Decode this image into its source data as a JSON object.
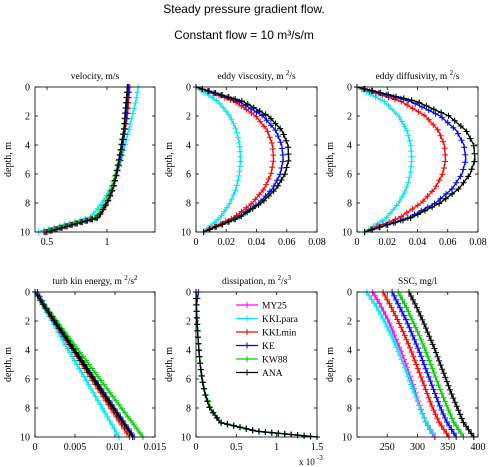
{
  "title_line1": "Steady pressure gradient flow.",
  "title_line2": "Constant flow = 10 m³/s/m",
  "colors": {
    "MY25": "#ff00ff",
    "KKLpara": "#00e5ee",
    "KKLmin": "#ff0000",
    "KE": "#0000ff",
    "KW88": "#00cc00",
    "ANA": "#000000"
  },
  "chart_data": [
    {
      "type": "line",
      "title": "velocity, m/s",
      "xlabel": "",
      "ylabel": "depth, m",
      "xlim": [
        0.4,
        1.4
      ],
      "ylim": [
        0,
        10
      ],
      "y_reversed": true,
      "xticks": [
        {
          "v": 0.5,
          "label": "0.5"
        },
        {
          "v": 1,
          "label": "1"
        }
      ],
      "yticks": [
        0,
        2,
        4,
        6,
        8,
        10
      ],
      "series": [
        {
          "name": "MY25",
          "x": [
            1.18,
            1.17,
            1.16,
            1.15,
            1.13,
            1.11,
            1.08,
            1.05,
            1.0,
            0.92,
            0.48
          ],
          "y": [
            0,
            1,
            2,
            3,
            4,
            5,
            6,
            7,
            8,
            9,
            10
          ]
        },
        {
          "name": "KKLpara",
          "x": [
            1.26,
            1.24,
            1.21,
            1.18,
            1.15,
            1.12,
            1.08,
            1.03,
            0.96,
            0.86,
            0.43
          ],
          "y": [
            0,
            1,
            2,
            3,
            4,
            5,
            6,
            7,
            8,
            9,
            10
          ]
        },
        {
          "name": "KKLmin",
          "x": [
            1.19,
            1.18,
            1.17,
            1.15,
            1.13,
            1.11,
            1.08,
            1.05,
            1.0,
            0.92,
            0.48
          ],
          "y": [
            0,
            1,
            2,
            3,
            4,
            5,
            6,
            7,
            8,
            9,
            10
          ]
        },
        {
          "name": "KE",
          "x": [
            1.18,
            1.17,
            1.16,
            1.15,
            1.13,
            1.11,
            1.08,
            1.05,
            1.0,
            0.92,
            0.49
          ],
          "y": [
            0,
            1,
            2,
            3,
            4,
            5,
            6,
            7,
            8,
            9,
            10
          ]
        },
        {
          "name": "KW88",
          "x": [
            1.17,
            1.16,
            1.15,
            1.14,
            1.12,
            1.1,
            1.07,
            1.04,
            0.99,
            0.91,
            0.47
          ],
          "y": [
            0,
            1,
            2,
            3,
            4,
            5,
            6,
            7,
            8,
            9,
            10
          ]
        },
        {
          "name": "ANA",
          "x": [
            1.17,
            1.16,
            1.15,
            1.14,
            1.12,
            1.1,
            1.08,
            1.05,
            1.0,
            0.93,
            0.5
          ],
          "y": [
            0,
            1,
            2,
            3,
            4,
            5,
            6,
            7,
            8,
            9,
            10
          ]
        }
      ]
    },
    {
      "type": "line",
      "title": "eddy viscosity, m 2/s",
      "xlabel": "",
      "ylabel": "depth, m",
      "xlim": [
        0,
        0.08
      ],
      "ylim": [
        0,
        10
      ],
      "y_reversed": true,
      "xticks": [
        {
          "v": 0,
          "label": "0"
        },
        {
          "v": 0.02,
          "label": "0.02"
        },
        {
          "v": 0.04,
          "label": "0.04"
        },
        {
          "v": 0.06,
          "label": "0.06"
        },
        {
          "v": 0.08,
          "label": "0.08"
        }
      ],
      "yticks": [
        0,
        2,
        4,
        6,
        8,
        10
      ],
      "series": [
        {
          "name": "KKLpara",
          "x": [
            0.0,
            0.0146,
            0.0224,
            0.0268,
            0.0289,
            0.0294,
            0.0287,
            0.0266,
            0.0225,
            0.016,
            0.005
          ],
          "y": [
            0,
            1,
            2,
            3,
            4,
            5,
            6,
            7,
            8,
            9,
            10
          ]
        },
        {
          "name": "KKLmin",
          "x": [
            0.0,
            0.0255,
            0.0395,
            0.0471,
            0.0506,
            0.0513,
            0.0496,
            0.0452,
            0.0372,
            0.025,
            0.005
          ],
          "y": [
            0,
            1,
            2,
            3,
            4,
            5,
            6,
            7,
            8,
            9,
            10
          ]
        },
        {
          "name": "KE",
          "x": [
            0.0,
            0.0285,
            0.0442,
            0.0527,
            0.0567,
            0.0577,
            0.0557,
            0.0507,
            0.0417,
            0.0279,
            0.005
          ],
          "y": [
            0,
            1,
            2,
            3,
            4,
            5,
            6,
            7,
            8,
            9,
            10
          ]
        },
        {
          "name": "KW88",
          "x": [
            0.0,
            0.0312,
            0.0479,
            0.0568,
            0.0608,
            0.0613,
            0.0588,
            0.0531,
            0.0433,
            0.0285,
            0.005
          ],
          "y": [
            0,
            1,
            2,
            3,
            4,
            5,
            6,
            7,
            8,
            9,
            10
          ]
        },
        {
          "name": "ANA",
          "x": [
            0.0,
            0.0312,
            0.0479,
            0.0568,
            0.0608,
            0.0613,
            0.0588,
            0.0531,
            0.0433,
            0.0285,
            0.005
          ],
          "y": [
            0,
            1,
            2,
            3,
            4,
            5,
            6,
            7,
            8,
            9,
            10
          ]
        }
      ]
    },
    {
      "type": "line",
      "title": "eddy diffusivity, m 2/s",
      "xlabel": "",
      "ylabel": "depth, m",
      "xlim": [
        0,
        0.08
      ],
      "ylim": [
        0,
        10
      ],
      "y_reversed": true,
      "xticks": [
        {
          "v": 0,
          "label": "0"
        },
        {
          "v": 0.02,
          "label": "0.02"
        },
        {
          "v": 0.04,
          "label": "0.04"
        },
        {
          "v": 0.06,
          "label": "0.06"
        },
        {
          "v": 0.08,
          "label": "0.08"
        }
      ],
      "yticks": [
        0,
        2,
        4,
        6,
        8,
        10
      ],
      "series": [
        {
          "name": "KKLpara",
          "x": [
            0.0,
            0.018,
            0.0276,
            0.033,
            0.0356,
            0.0362,
            0.0353,
            0.0327,
            0.0276,
            0.0196,
            0.005
          ],
          "y": [
            0,
            1,
            2,
            3,
            4,
            5,
            6,
            7,
            8,
            9,
            10
          ]
        },
        {
          "name": "KKLmin",
          "x": [
            0.0,
            0.0292,
            0.0452,
            0.0538,
            0.0578,
            0.0586,
            0.0566,
            0.0515,
            0.0424,
            0.0283,
            0.005
          ],
          "y": [
            0,
            1,
            2,
            3,
            4,
            5,
            6,
            7,
            8,
            9,
            10
          ]
        },
        {
          "name": "KE",
          "x": [
            0.0,
            0.0356,
            0.0551,
            0.0657,
            0.0707,
            0.072,
            0.0694,
            0.0631,
            0.0519,
            0.0344,
            0.005
          ],
          "y": [
            0,
            1,
            2,
            3,
            4,
            5,
            6,
            7,
            8,
            9,
            10
          ]
        },
        {
          "name": "KW88",
          "x": [
            0.0,
            0.0395,
            0.0608,
            0.0721,
            0.0772,
            0.078,
            0.0748,
            0.0675,
            0.055,
            0.0362,
            0.005
          ],
          "y": [
            0,
            1,
            2,
            3,
            4,
            5,
            6,
            7,
            8,
            9,
            10
          ]
        },
        {
          "name": "ANA",
          "x": [
            0.0,
            0.0395,
            0.0608,
            0.0721,
            0.0772,
            0.078,
            0.0748,
            0.0675,
            0.055,
            0.0362,
            0.005
          ],
          "y": [
            0,
            1,
            2,
            3,
            4,
            5,
            6,
            7,
            8,
            9,
            10
          ]
        }
      ]
    },
    {
      "type": "line",
      "title": "turb kin energy, m 2/s2",
      "xlabel": "",
      "ylabel": "depth, m",
      "xlim": [
        0,
        0.015
      ],
      "ylim": [
        0,
        10
      ],
      "y_reversed": true,
      "xticks": [
        {
          "v": 0,
          "label": "0"
        },
        {
          "v": 0.005,
          "label": "0.005"
        },
        {
          "v": 0.01,
          "label": "0.01"
        },
        {
          "v": 0.015,
          "label": "0.015"
        }
      ],
      "yticks": [
        0,
        2,
        4,
        6,
        8,
        10
      ],
      "series": [
        {
          "name": "KKLpara",
          "x": [
            0.0,
            0.00105,
            0.0021,
            0.00315,
            0.0042,
            0.00525,
            0.0063,
            0.00735,
            0.0084,
            0.00945,
            0.0105
          ],
          "y": [
            0,
            1,
            2,
            3,
            4,
            5,
            6,
            7,
            8,
            9,
            10
          ]
        },
        {
          "name": "KKLmin",
          "x": [
            0.0,
            0.00118,
            0.00236,
            0.00354,
            0.00472,
            0.0059,
            0.00708,
            0.00826,
            0.00944,
            0.01062,
            0.0118
          ],
          "y": [
            0,
            1,
            2,
            3,
            4,
            5,
            6,
            7,
            8,
            9,
            10
          ]
        },
        {
          "name": "KE",
          "x": [
            0.0003,
            0.00126,
            0.00248,
            0.00372,
            0.00495,
            0.00618,
            0.00742,
            0.00866,
            0.0099,
            0.01114,
            0.0124
          ],
          "y": [
            0,
            1,
            2,
            3,
            4,
            5,
            6,
            7,
            8,
            9,
            10
          ]
        },
        {
          "name": "KW88",
          "x": [
            0.0,
            0.00135,
            0.0027,
            0.00405,
            0.0054,
            0.00675,
            0.0081,
            0.00945,
            0.0108,
            0.01215,
            0.0135
          ],
          "y": [
            0,
            1,
            2,
            3,
            4,
            5,
            6,
            7,
            8,
            9,
            10
          ]
        },
        {
          "name": "ANA",
          "x": [
            0.0,
            0.00122,
            0.00244,
            0.00366,
            0.00488,
            0.0061,
            0.00732,
            0.00854,
            0.00976,
            0.01098,
            0.0122
          ],
          "y": [
            0,
            1,
            2,
            3,
            4,
            5,
            6,
            7,
            8,
            9,
            10
          ]
        }
      ]
    },
    {
      "type": "line",
      "title": "dissipation, m 2/s3",
      "xlabel": "",
      "ylabel": "depth, m",
      "x_multiplier": "x 10 -3",
      "xlim": [
        0,
        1.5
      ],
      "ylim": [
        0,
        10
      ],
      "y_reversed": true,
      "xticks": [
        {
          "v": 0,
          "label": "0"
        },
        {
          "v": 0.5,
          "label": "0.5"
        },
        {
          "v": 1,
          "label": "1"
        },
        {
          "v": 1.5,
          "label": "1.5"
        }
      ],
      "yticks": [
        0,
        2,
        4,
        6,
        8,
        10
      ],
      "series": [
        {
          "name": "KKLpara",
          "x": [
            0.0,
            0.005,
            0.013,
            0.023,
            0.036,
            0.052,
            0.075,
            0.11,
            0.17,
            0.3,
            0.75,
            1.5
          ],
          "y": [
            0,
            1,
            2,
            3,
            4,
            5,
            6,
            7,
            8,
            9,
            9.6,
            10
          ]
        },
        {
          "name": "KE",
          "x": [
            0.03,
            0.005,
            0.013,
            0.023,
            0.036,
            0.052,
            0.075,
            0.11,
            0.17,
            0.3,
            0.75,
            1.5
          ],
          "y": [
            0,
            1,
            2,
            3,
            4,
            5,
            6,
            7,
            8,
            9,
            9.6,
            10
          ]
        },
        {
          "name": "KW88",
          "x": [
            0.0,
            0.006,
            0.014,
            0.024,
            0.037,
            0.054,
            0.078,
            0.115,
            0.18,
            0.31,
            0.76,
            1.5
          ],
          "y": [
            0,
            1,
            2,
            3,
            4,
            5,
            6,
            7,
            8,
            9,
            9.6,
            10
          ]
        },
        {
          "name": "ANA",
          "x": [
            0.0,
            0.005,
            0.013,
            0.023,
            0.036,
            0.052,
            0.075,
            0.11,
            0.17,
            0.3,
            0.75,
            1.5
          ],
          "y": [
            0,
            1,
            2,
            3,
            4,
            5,
            6,
            7,
            8,
            9,
            9.6,
            10
          ]
        }
      ]
    },
    {
      "type": "line",
      "title": "SSC, mg/l",
      "xlabel": "",
      "ylabel": "depth, m",
      "xlim": [
        200,
        400
      ],
      "ylim": [
        0,
        10
      ],
      "y_reversed": true,
      "xticks": [
        {
          "v": 250,
          "label": "250"
        },
        {
          "v": 300,
          "label": "300"
        },
        {
          "v": 350,
          "label": "350"
        },
        {
          "v": 400,
          "label": "400"
        }
      ],
      "yticks": [
        0,
        2,
        4,
        6,
        8,
        10
      ],
      "series": [
        {
          "name": "MY25",
          "x": [
            226,
            240,
            252,
            262,
            272,
            281,
            289,
            297,
            305,
            314,
            328
          ],
          "y": [
            0,
            1,
            2,
            3,
            4,
            5,
            6,
            7,
            8,
            9,
            10
          ]
        },
        {
          "name": "KKLpara",
          "x": [
            216,
            232,
            245,
            257,
            267,
            277,
            286,
            295,
            304,
            314,
            330
          ],
          "y": [
            0,
            1,
            2,
            3,
            4,
            5,
            6,
            7,
            8,
            9,
            10
          ]
        },
        {
          "name": "KKLmin",
          "x": [
            243,
            256,
            268,
            279,
            289,
            298,
            307,
            316,
            325,
            336,
            352
          ],
          "y": [
            0,
            1,
            2,
            3,
            4,
            5,
            6,
            7,
            8,
            9,
            10
          ]
        },
        {
          "name": "KE",
          "x": [
            258,
            270,
            282,
            292,
            302,
            311,
            320,
            329,
            338,
            349,
            364
          ],
          "y": [
            0,
            1,
            2,
            3,
            4,
            5,
            6,
            7,
            8,
            9,
            10
          ]
        },
        {
          "name": "KW88",
          "x": [
            268,
            281,
            292,
            303,
            313,
            322,
            331,
            340,
            350,
            360,
            376
          ],
          "y": [
            0,
            1,
            2,
            3,
            4,
            5,
            6,
            7,
            8,
            9,
            10
          ]
        },
        {
          "name": "ANA",
          "x": [
            286,
            298,
            309,
            319,
            329,
            338,
            347,
            356,
            366,
            376,
            393
          ],
          "y": [
            0,
            1,
            2,
            3,
            4,
            5,
            6,
            7,
            8,
            9,
            10
          ]
        }
      ]
    }
  ],
  "legend": [
    {
      "name": "MY25"
    },
    {
      "name": "KKLpara"
    },
    {
      "name": "KKLmin"
    },
    {
      "name": "KE"
    },
    {
      "name": "KW88"
    },
    {
      "name": "ANA"
    }
  ]
}
